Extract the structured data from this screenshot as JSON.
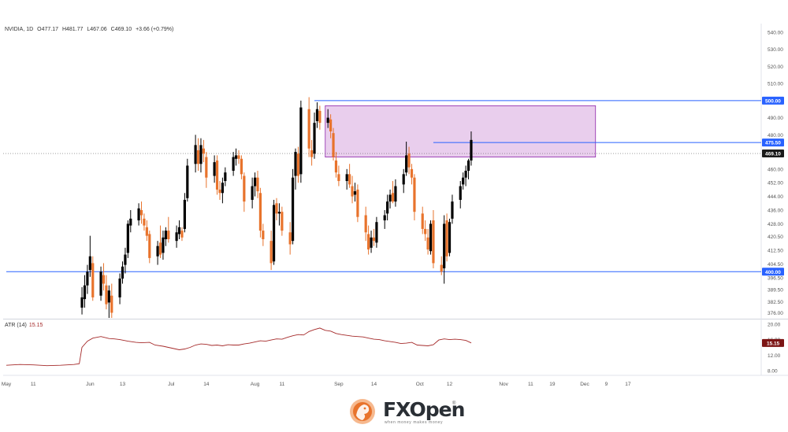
{
  "header": {
    "symbol": "NVIDIA, 1D",
    "open": "O477.17",
    "high": "H481.77",
    "low": "L467.06",
    "close": "C469.10",
    "change": "+3.66 (+0.79%)"
  },
  "atr_label": {
    "name": "ATR (14)",
    "value": "15.15"
  },
  "logo": {
    "brand": "FXOpen",
    "tagline": "when money makes money",
    "reg": "®"
  },
  "colors": {
    "up": "#000000",
    "down": "#e8732c",
    "level": "#2962ff",
    "zone": "#e1bee7",
    "atr": "#a52a2a"
  },
  "chart_data": {
    "type": "candlestick",
    "symbol": "NVIDIA",
    "timeframe": "1D",
    "y_ticks": [
      540,
      530,
      520,
      510,
      500,
      490,
      480,
      475.5,
      469.1,
      460,
      452,
      444,
      436,
      428,
      420.5,
      412.5,
      404.5,
      400,
      396.5,
      389.5,
      382.5,
      376
    ],
    "ylim": [
      373,
      545
    ],
    "x_ticks": [
      {
        "label": "May",
        "day": 0
      },
      {
        "label": "11",
        "day": 10
      },
      {
        "label": "Jun",
        "day": 31
      },
      {
        "label": "13",
        "day": 43
      },
      {
        "label": "Jul",
        "day": 61
      },
      {
        "label": "14",
        "day": 74
      },
      {
        "label": "Aug",
        "day": 92
      },
      {
        "label": "11",
        "day": 102
      },
      {
        "label": "Sep",
        "day": 123
      },
      {
        "label": "14",
        "day": 136
      },
      {
        "label": "Oct",
        "day": 153
      },
      {
        "label": "12",
        "day": 164
      },
      {
        "label": "Nov",
        "day": 184
      },
      {
        "label": "11",
        "day": 194
      },
      {
        "label": "19",
        "day": 202
      },
      {
        "label": "Dec",
        "day": 214
      },
      {
        "label": "9",
        "day": 222
      },
      {
        "label": "17",
        "day": 230
      }
    ],
    "x_range": [
      0,
      245
    ],
    "levels": [
      {
        "price": 500.0,
        "label": "500.00",
        "start_day": 114
      },
      {
        "price": 475.5,
        "label": "475.50",
        "start_day": 158
      },
      {
        "price": 400.0,
        "label": "400.00",
        "start_day": 0
      }
    ],
    "current_price": {
      "price": 469.1,
      "label": "469.10"
    },
    "zone": {
      "low": 467,
      "high": 497,
      "start_day": 118,
      "end_day": 218
    },
    "candles": [
      {
        "d": 28,
        "o": 379,
        "h": 391,
        "l": 375,
        "c": 385
      },
      {
        "d": 29,
        "o": 384,
        "h": 398,
        "l": 379,
        "c": 392
      },
      {
        "d": 30,
        "o": 392,
        "h": 404,
        "l": 387,
        "c": 400
      },
      {
        "d": 31,
        "o": 401,
        "h": 421,
        "l": 397,
        "c": 409
      },
      {
        "d": 32,
        "o": 405,
        "h": 409,
        "l": 383,
        "c": 385
      },
      {
        "d": 35,
        "o": 386,
        "h": 403,
        "l": 383,
        "c": 400
      },
      {
        "d": 36,
        "o": 398,
        "h": 405,
        "l": 389,
        "c": 393
      },
      {
        "d": 37,
        "o": 392,
        "h": 398,
        "l": 378,
        "c": 381
      },
      {
        "d": 38,
        "o": 382,
        "h": 392,
        "l": 373,
        "c": 389
      },
      {
        "d": 39,
        "o": 386,
        "h": 393,
        "l": 373,
        "c": 376
      },
      {
        "d": 42,
        "o": 385,
        "h": 399,
        "l": 381,
        "c": 396
      },
      {
        "d": 43,
        "o": 396,
        "h": 406,
        "l": 393,
        "c": 403
      },
      {
        "d": 44,
        "o": 404,
        "h": 414,
        "l": 399,
        "c": 410
      },
      {
        "d": 45,
        "o": 411,
        "h": 430,
        "l": 408,
        "c": 428
      },
      {
        "d": 46,
        "o": 427,
        "h": 436,
        "l": 423,
        "c": 431
      },
      {
        "d": 49,
        "o": 430,
        "h": 440,
        "l": 427,
        "c": 437
      },
      {
        "d": 50,
        "o": 436,
        "h": 441,
        "l": 428,
        "c": 433
      },
      {
        "d": 51,
        "o": 431,
        "h": 434,
        "l": 424,
        "c": 427
      },
      {
        "d": 52,
        "o": 426,
        "h": 430,
        "l": 418,
        "c": 421
      },
      {
        "d": 53,
        "o": 422,
        "h": 424,
        "l": 405,
        "c": 408
      },
      {
        "d": 56,
        "o": 409,
        "h": 418,
        "l": 404,
        "c": 415
      },
      {
        "d": 57,
        "o": 417,
        "h": 427,
        "l": 408,
        "c": 410
      },
      {
        "d": 58,
        "o": 411,
        "h": 424,
        "l": 407,
        "c": 420
      },
      {
        "d": 59,
        "o": 419,
        "h": 426,
        "l": 415,
        "c": 424
      },
      {
        "d": 60,
        "o": 424,
        "h": 432,
        "l": 417,
        "c": 419
      },
      {
        "d": 63,
        "o": 418,
        "h": 427,
        "l": 414,
        "c": 423
      },
      {
        "d": 64,
        "o": 422,
        "h": 430,
        "l": 419,
        "c": 426
      },
      {
        "d": 65,
        "o": 424,
        "h": 426,
        "l": 418,
        "c": 420
      },
      {
        "d": 66,
        "o": 425,
        "h": 446,
        "l": 423,
        "c": 442
      },
      {
        "d": 67,
        "o": 443,
        "h": 466,
        "l": 441,
        "c": 462
      },
      {
        "d": 70,
        "o": 463,
        "h": 480,
        "l": 458,
        "c": 474
      },
      {
        "d": 71,
        "o": 471,
        "h": 478,
        "l": 459,
        "c": 463
      },
      {
        "d": 72,
        "o": 463,
        "h": 478,
        "l": 458,
        "c": 474
      },
      {
        "d": 73,
        "o": 472,
        "h": 477,
        "l": 464,
        "c": 469
      },
      {
        "d": 74,
        "o": 467,
        "h": 470,
        "l": 449,
        "c": 455
      },
      {
        "d": 77,
        "o": 456,
        "h": 468,
        "l": 452,
        "c": 464
      },
      {
        "d": 78,
        "o": 465,
        "h": 468,
        "l": 445,
        "c": 448
      },
      {
        "d": 79,
        "o": 448,
        "h": 453,
        "l": 442,
        "c": 446
      },
      {
        "d": 80,
        "o": 446,
        "h": 455,
        "l": 440,
        "c": 452
      },
      {
        "d": 81,
        "o": 453,
        "h": 461,
        "l": 450,
        "c": 458
      },
      {
        "d": 84,
        "o": 459,
        "h": 470,
        "l": 456,
        "c": 467
      },
      {
        "d": 85,
        "o": 466,
        "h": 472,
        "l": 462,
        "c": 468
      },
      {
        "d": 86,
        "o": 468,
        "h": 471,
        "l": 463,
        "c": 466
      },
      {
        "d": 87,
        "o": 466,
        "h": 468,
        "l": 454,
        "c": 457
      },
      {
        "d": 88,
        "o": 456,
        "h": 458,
        "l": 435,
        "c": 441
      },
      {
        "d": 91,
        "o": 442,
        "h": 455,
        "l": 437,
        "c": 450
      },
      {
        "d": 92,
        "o": 450,
        "h": 458,
        "l": 444,
        "c": 455
      },
      {
        "d": 93,
        "o": 455,
        "h": 459,
        "l": 443,
        "c": 447
      },
      {
        "d": 94,
        "o": 446,
        "h": 449,
        "l": 420,
        "c": 424
      },
      {
        "d": 95,
        "o": 424,
        "h": 428,
        "l": 415,
        "c": 419
      },
      {
        "d": 98,
        "o": 418,
        "h": 424,
        "l": 401,
        "c": 405
      },
      {
        "d": 99,
        "o": 406,
        "h": 442,
        "l": 404,
        "c": 439
      },
      {
        "d": 100,
        "o": 440,
        "h": 443,
        "l": 430,
        "c": 434
      },
      {
        "d": 101,
        "o": 434,
        "h": 440,
        "l": 427,
        "c": 435
      },
      {
        "d": 102,
        "o": 435,
        "h": 438,
        "l": 421,
        "c": 424
      },
      {
        "d": 105,
        "o": 423,
        "h": 429,
        "l": 410,
        "c": 416
      },
      {
        "d": 106,
        "o": 418,
        "h": 460,
        "l": 416,
        "c": 455
      },
      {
        "d": 107,
        "o": 456,
        "h": 472,
        "l": 448,
        "c": 470
      },
      {
        "d": 108,
        "o": 469,
        "h": 473,
        "l": 452,
        "c": 456
      },
      {
        "d": 109,
        "o": 457,
        "h": 500,
        "l": 452,
        "c": 496
      },
      {
        "d": 112,
        "o": 495,
        "h": 502,
        "l": 467,
        "c": 472
      },
      {
        "d": 113,
        "o": 471,
        "h": 477,
        "l": 462,
        "c": 467
      },
      {
        "d": 114,
        "o": 469,
        "h": 493,
        "l": 466,
        "c": 487
      },
      {
        "d": 115,
        "o": 488,
        "h": 499,
        "l": 484,
        "c": 495
      },
      {
        "d": 116,
        "o": 494,
        "h": 497,
        "l": 483,
        "c": 487
      },
      {
        "d": 119,
        "o": 487,
        "h": 495,
        "l": 484,
        "c": 490
      },
      {
        "d": 120,
        "o": 489,
        "h": 492,
        "l": 478,
        "c": 482
      },
      {
        "d": 121,
        "o": 481,
        "h": 484,
        "l": 465,
        "c": 467
      },
      {
        "d": 122,
        "o": 465,
        "h": 470,
        "l": 455,
        "c": 458
      },
      {
        "d": 123,
        "o": 457,
        "h": 462,
        "l": 450,
        "c": 453
      },
      {
        "d": 126,
        "o": 453,
        "h": 460,
        "l": 448,
        "c": 457
      },
      {
        "d": 127,
        "o": 457,
        "h": 463,
        "l": 449,
        "c": 451
      },
      {
        "d": 128,
        "o": 450,
        "h": 456,
        "l": 440,
        "c": 444
      },
      {
        "d": 129,
        "o": 445,
        "h": 452,
        "l": 441,
        "c": 447
      },
      {
        "d": 130,
        "o": 448,
        "h": 451,
        "l": 429,
        "c": 432
      },
      {
        "d": 133,
        "o": 433,
        "h": 438,
        "l": 418,
        "c": 423
      },
      {
        "d": 134,
        "o": 422,
        "h": 427,
        "l": 410,
        "c": 413
      },
      {
        "d": 135,
        "o": 414,
        "h": 424,
        "l": 411,
        "c": 420
      },
      {
        "d": 136,
        "o": 420,
        "h": 425,
        "l": 415,
        "c": 418
      },
      {
        "d": 137,
        "o": 417,
        "h": 432,
        "l": 414,
        "c": 429
      },
      {
        "d": 140,
        "o": 430,
        "h": 436,
        "l": 425,
        "c": 433
      },
      {
        "d": 141,
        "o": 434,
        "h": 445,
        "l": 430,
        "c": 441
      },
      {
        "d": 142,
        "o": 441,
        "h": 448,
        "l": 437,
        "c": 445
      },
      {
        "d": 143,
        "o": 446,
        "h": 453,
        "l": 440,
        "c": 441
      },
      {
        "d": 144,
        "o": 441,
        "h": 454,
        "l": 438,
        "c": 450
      },
      {
        "d": 147,
        "o": 451,
        "h": 460,
        "l": 446,
        "c": 457
      },
      {
        "d": 148,
        "o": 458,
        "h": 476,
        "l": 456,
        "c": 468
      },
      {
        "d": 149,
        "o": 469,
        "h": 473,
        "l": 457,
        "c": 461
      },
      {
        "d": 150,
        "o": 460,
        "h": 463,
        "l": 451,
        "c": 455
      },
      {
        "d": 151,
        "o": 455,
        "h": 457,
        "l": 430,
        "c": 435
      },
      {
        "d": 154,
        "o": 434,
        "h": 438,
        "l": 422,
        "c": 425
      },
      {
        "d": 155,
        "o": 425,
        "h": 430,
        "l": 418,
        "c": 422
      },
      {
        "d": 156,
        "o": 420,
        "h": 425,
        "l": 410,
        "c": 413
      },
      {
        "d": 157,
        "o": 412,
        "h": 430,
        "l": 410,
        "c": 428
      },
      {
        "d": 158,
        "o": 430,
        "h": 436,
        "l": 402,
        "c": 405
      },
      {
        "d": 161,
        "o": 404,
        "h": 409,
        "l": 398,
        "c": 400
      },
      {
        "d": 162,
        "o": 402,
        "h": 433,
        "l": 393,
        "c": 428
      },
      {
        "d": 163,
        "o": 430,
        "h": 434,
        "l": 406,
        "c": 409
      },
      {
        "d": 164,
        "o": 411,
        "h": 431,
        "l": 409,
        "c": 429
      },
      {
        "d": 165,
        "o": 431,
        "h": 445,
        "l": 428,
        "c": 441
      },
      {
        "d": 168,
        "o": 442,
        "h": 453,
        "l": 437,
        "c": 450
      },
      {
        "d": 169,
        "o": 451,
        "h": 458,
        "l": 448,
        "c": 455
      },
      {
        "d": 170,
        "o": 455,
        "h": 462,
        "l": 450,
        "c": 459
      },
      {
        "d": 171,
        "o": 459,
        "h": 466,
        "l": 454,
        "c": 465
      },
      {
        "d": 172,
        "o": 465,
        "h": 482,
        "l": 462,
        "c": 477
      }
    ],
    "atr": {
      "name": "ATR (14)",
      "last": 15.15,
      "y_ticks": [
        20.0,
        16.0,
        12.0,
        8.0
      ],
      "ylim": [
        7,
        21
      ],
      "points": [
        [
          0,
          9.4
        ],
        [
          5,
          9.6
        ],
        [
          10,
          9.5
        ],
        [
          15,
          9.3
        ],
        [
          20,
          9.4
        ],
        [
          25,
          9.6
        ],
        [
          27,
          9.8
        ],
        [
          28,
          14.0
        ],
        [
          30,
          15.6
        ],
        [
          32,
          16.4
        ],
        [
          35,
          16.8
        ],
        [
          38,
          16.3
        ],
        [
          40,
          16.2
        ],
        [
          42,
          16.0
        ],
        [
          45,
          15.6
        ],
        [
          48,
          15.3
        ],
        [
          50,
          15.2
        ],
        [
          53,
          15.3
        ],
        [
          55,
          14.6
        ],
        [
          58,
          14.3
        ],
        [
          60,
          14.0
        ],
        [
          62,
          13.7
        ],
        [
          64,
          13.4
        ],
        [
          66,
          13.6
        ],
        [
          68,
          14.0
        ],
        [
          70,
          14.6
        ],
        [
          72,
          14.9
        ],
        [
          74,
          14.8
        ],
        [
          76,
          14.5
        ],
        [
          78,
          14.6
        ],
        [
          80,
          14.4
        ],
        [
          82,
          14.7
        ],
        [
          84,
          14.6
        ],
        [
          86,
          14.6
        ],
        [
          88,
          14.9
        ],
        [
          90,
          15.1
        ],
        [
          92,
          15.4
        ],
        [
          94,
          15.7
        ],
        [
          96,
          15.6
        ],
        [
          98,
          15.9
        ],
        [
          100,
          16.2
        ],
        [
          102,
          16.1
        ],
        [
          104,
          16.6
        ],
        [
          106,
          17.0
        ],
        [
          108,
          17.3
        ],
        [
          110,
          17.2
        ],
        [
          112,
          18.1
        ],
        [
          114,
          18.6
        ],
        [
          116,
          19.0
        ],
        [
          118,
          18.4
        ],
        [
          120,
          18.2
        ],
        [
          122,
          17.6
        ],
        [
          124,
          17.3
        ],
        [
          126,
          17.1
        ],
        [
          128,
          16.9
        ],
        [
          130,
          16.8
        ],
        [
          132,
          16.7
        ],
        [
          134,
          16.4
        ],
        [
          136,
          16.1
        ],
        [
          138,
          16.0
        ],
        [
          140,
          15.7
        ],
        [
          142,
          15.5
        ],
        [
          144,
          15.3
        ],
        [
          146,
          15.0
        ],
        [
          148,
          15.1
        ],
        [
          150,
          15.3
        ],
        [
          152,
          14.6
        ],
        [
          154,
          14.5
        ],
        [
          156,
          14.4
        ],
        [
          158,
          14.7
        ],
        [
          160,
          15.9
        ],
        [
          162,
          16.2
        ],
        [
          164,
          16.0
        ],
        [
          166,
          16.1
        ],
        [
          168,
          16.0
        ],
        [
          170,
          15.8
        ],
        [
          172,
          15.15
        ]
      ]
    }
  }
}
